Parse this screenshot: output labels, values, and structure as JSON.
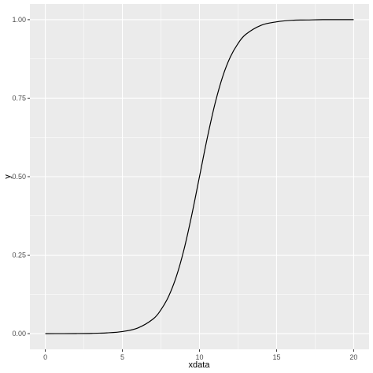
{
  "chart_data": {
    "type": "line",
    "xlabel": "xdata",
    "ylabel": "y",
    "xlim": [
      -1,
      21
    ],
    "ylim": [
      -0.05,
      1.05
    ],
    "x_ticks": [
      0,
      5,
      10,
      15,
      20
    ],
    "x_tick_labels": [
      "0",
      "5",
      "10",
      "15",
      "20"
    ],
    "y_ticks": [
      0,
      0.25,
      0.5,
      0.75,
      1
    ],
    "y_tick_labels": [
      "0.00",
      "0.25",
      "0.50",
      "0.75",
      "1.00"
    ],
    "grid": true,
    "legend": "none",
    "colors": {
      "panel": "#ebebeb",
      "grid": "#ffffff",
      "line": "#000000",
      "tick_text": "#4d4d4d"
    },
    "series": [
      {
        "x": [
          0,
          1,
          2,
          3,
          4,
          5,
          6,
          7,
          7.5,
          8,
          8.5,
          9,
          9.5,
          10,
          10.5,
          11,
          11.5,
          12,
          12.5,
          13,
          14,
          15,
          16,
          17,
          18,
          19,
          20
        ],
        "y": [
          0.0,
          0.0001,
          0.0003,
          0.0009,
          0.0025,
          0.0067,
          0.018,
          0.047,
          0.076,
          0.119,
          0.182,
          0.269,
          0.378,
          0.5,
          0.622,
          0.731,
          0.818,
          0.881,
          0.924,
          0.953,
          0.982,
          0.993,
          0.998,
          0.999,
          1.0,
          1.0,
          1.0
        ]
      }
    ]
  }
}
